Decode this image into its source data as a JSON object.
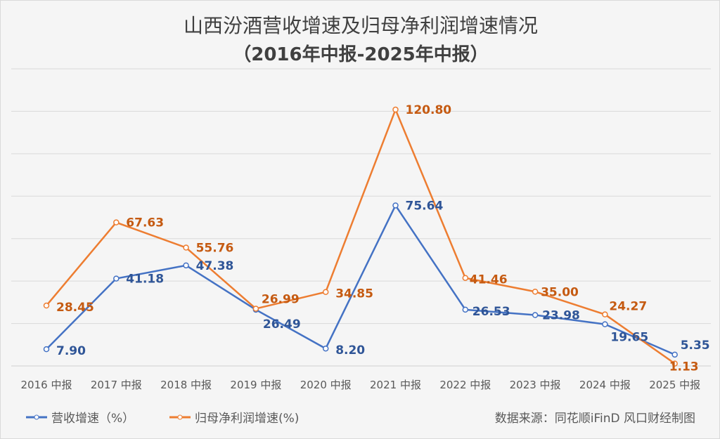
{
  "chart_data": {
    "type": "line",
    "title": "山西汾酒营收增速及归母净利润增速情况",
    "subtitle": "（2016年中报-2025年中报）",
    "categories": [
      "2016 中报",
      "2017 中报",
      "2018 中报",
      "2019 中报",
      "2020 中报",
      "2021 中报",
      "2022 中报",
      "2023 中报",
      "2024 中报",
      "2025 中报"
    ],
    "series": [
      {
        "name": "营收增速（%）",
        "color": "#4472c4",
        "values": [
          7.9,
          41.18,
          47.38,
          26.49,
          8.2,
          75.64,
          26.53,
          23.98,
          19.65,
          5.35
        ]
      },
      {
        "name": "归母净利润增速(%)",
        "color": "#ed7d31",
        "values": [
          28.45,
          67.63,
          55.76,
          26.99,
          34.85,
          120.8,
          41.46,
          35.0,
          24.27,
          1.13
        ]
      }
    ],
    "ylim": [
      0,
      140
    ],
    "grid": true,
    "legend": "bottom-left"
  },
  "source": "数据来源：同花顺iFinD  风口财经制图"
}
